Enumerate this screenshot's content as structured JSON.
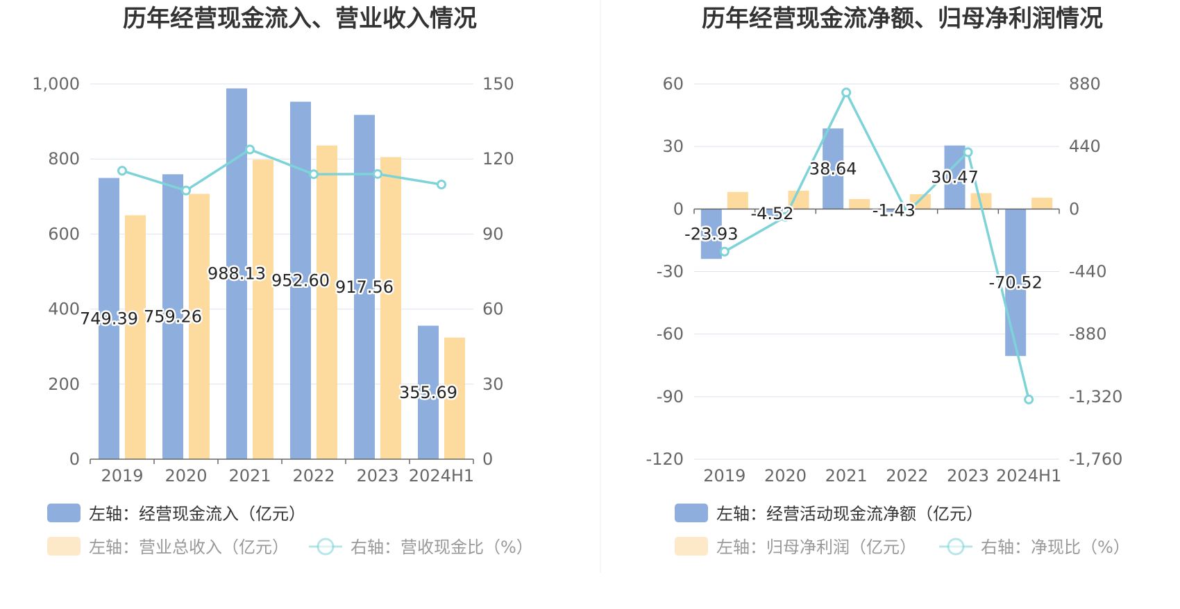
{
  "colors": {
    "bar1": "#8eaedd",
    "bar2": "#fdda9e",
    "bar2_legend": "#fde9c8",
    "line": "#7dd3d8",
    "grid": "#dde2f0",
    "axis": "#666666"
  },
  "chart_data": [
    {
      "type": "bar",
      "title": "历年经营现金流入、营业收入情况",
      "categories": [
        "2019",
        "2020",
        "2021",
        "2022",
        "2023",
        "2024H1"
      ],
      "left_axis": {
        "min": 0,
        "max": 1000,
        "ticks": [
          "0",
          "200",
          "400",
          "600",
          "800",
          "1,000"
        ]
      },
      "right_axis": {
        "min": 0,
        "max": 150,
        "ticks": [
          "0",
          "30",
          "60",
          "90",
          "120",
          "150"
        ]
      },
      "series": [
        {
          "name": "左轴：经营现金流入（亿元）",
          "kind": "bar",
          "axis": "left",
          "values": [
            749.39,
            759.26,
            988.13,
            952.6,
            917.56,
            355.69
          ],
          "labels": [
            "749.39",
            "759.26",
            "988.13",
            "952.60",
            "917.56",
            "355.69"
          ]
        },
        {
          "name": "左轴：营业总收入（亿元）",
          "kind": "bar",
          "axis": "left",
          "values": [
            650,
            707,
            798,
            836,
            805,
            324
          ]
        },
        {
          "name": "右轴：营收现金比（%）",
          "kind": "line",
          "axis": "right",
          "values": [
            115.3,
            107.4,
            123.8,
            113.9,
            114.0,
            109.8
          ]
        }
      ],
      "legend": [
        "左轴：经营现金流入（亿元）",
        "左轴：营业总收入（亿元）",
        "右轴：营收现金比（%）"
      ]
    },
    {
      "type": "bar",
      "title": "历年经营现金流净额、归母净利润情况",
      "categories": [
        "2019",
        "2020",
        "2021",
        "2022",
        "2023",
        "2024H1"
      ],
      "left_axis": {
        "min": -120,
        "max": 60,
        "ticks": [
          "-120",
          "-90",
          "-60",
          "-30",
          "0",
          "30",
          "60"
        ]
      },
      "right_axis": {
        "min": -1760,
        "max": 880,
        "ticks": [
          "-1,760",
          "-1,320",
          "-880",
          "-440",
          "0",
          "440",
          "880"
        ]
      },
      "series": [
        {
          "name": "左轴：经营活动现金流净额（亿元）",
          "kind": "bar",
          "axis": "left",
          "values": [
            -23.93,
            -4.52,
            38.64,
            -1.43,
            30.47,
            -70.52
          ],
          "labels": [
            "-23.93",
            "-4.52",
            "38.64",
            "-1.43",
            "30.47",
            "-70.52"
          ]
        },
        {
          "name": "左轴：归母净利润（亿元）",
          "kind": "bar",
          "axis": "left",
          "values": [
            8.2,
            8.8,
            4.8,
            7.1,
            7.6,
            5.4
          ]
        },
        {
          "name": "右轴：净现比（%）",
          "kind": "line",
          "axis": "right",
          "values": [
            -300,
            -55,
            820,
            -25,
            400,
            -1340
          ]
        }
      ],
      "legend": [
        "左轴：经营活动现金流净额（亿元）",
        "左轴：归母净利润（亿元）",
        "右轴：净现比（%）"
      ]
    }
  ]
}
